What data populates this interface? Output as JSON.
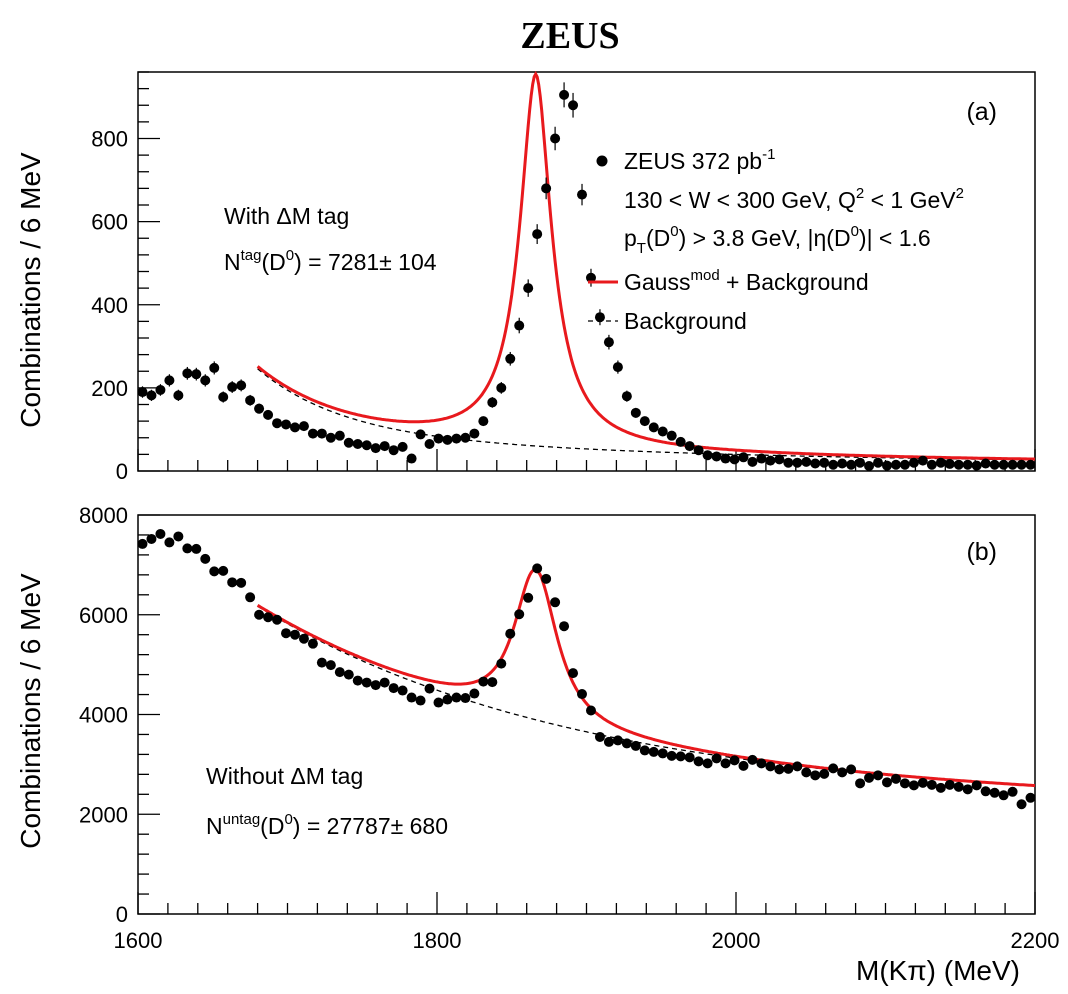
{
  "figure_title": "ZEUS",
  "x_axis_label": "M(Kπ)  (MeV)",
  "y_axis_label": "Combinations  /  6 MeV",
  "colors": {
    "data": "#000000",
    "fit": "#e8191d",
    "background": "#000000"
  },
  "chart_data": [
    {
      "type": "scatter",
      "panel_label": "(a)",
      "xlim": [
        1600,
        2200
      ],
      "ylim": [
        0,
        960
      ],
      "yticks": [
        0,
        200,
        400,
        600,
        800
      ],
      "xticks": [
        1600,
        1800,
        2000,
        2200
      ],
      "grid": false,
      "legend_position": "top-right",
      "legend": {
        "data": {
          "main": "ZEUS  372 pb",
          "sup": "-1"
        },
        "line1": "130 < W < 300 GeV, Q",
        "line1_sup": "2",
        "line1_mid": " < 1 GeV",
        "line1_sup2": "2",
        "line2": "p",
        "line2_sub": "T",
        "line2_a": "(D",
        "line2_sup": "0",
        "line2_b": ") > 3.8 GeV, |η(D",
        "line2_sup2": "0",
        "line2_c": ")| < 1.6",
        "fit": {
          "main": "Gauss",
          "sup": "mod",
          "rest": " + Background"
        },
        "bkg": "Background"
      },
      "annotations": {
        "tag_line": "With ΔM tag",
        "count_main": "N",
        "count_sup": "tag",
        "count_a": "(D",
        "count_sup2": "0",
        "count_b": ") = 7281± 104"
      },
      "data_points": {
        "x": [
          1603,
          1609,
          1615,
          1621,
          1627,
          1633,
          1639,
          1645,
          1651,
          1657,
          1663,
          1669,
          1675,
          1681,
          1687,
          1693,
          1699,
          1705,
          1711,
          1717,
          1723,
          1729,
          1735,
          1741,
          1747,
          1753,
          1759,
          1765,
          1771,
          1777,
          1783,
          1789,
          1795,
          1801,
          1807,
          1813,
          1819,
          1825,
          1831,
          1837,
          1843,
          1849,
          1855,
          1861,
          1867,
          1873,
          1879,
          1885,
          1891,
          1897,
          1903,
          1909,
          1915,
          1921,
          1927,
          1933,
          1939,
          1945,
          1951,
          1957,
          1963,
          1969,
          1975,
          1981,
          1987,
          1993,
          1999,
          2005,
          2011,
          2017,
          2023,
          2029,
          2035,
          2041,
          2047,
          2053,
          2059,
          2065,
          2071,
          2077,
          2083,
          2089,
          2095,
          2101,
          2107,
          2113,
          2119,
          2125,
          2131,
          2137,
          2143,
          2149,
          2155,
          2161,
          2167,
          2173,
          2179,
          2185,
          2191,
          2197
        ],
        "y": [
          190,
          182,
          195,
          218,
          182,
          235,
          233,
          218,
          248,
          178,
          202,
          206,
          170,
          150,
          135,
          115,
          112,
          105,
          108,
          90,
          90,
          80,
          85,
          68,
          65,
          62,
          55,
          60,
          50,
          58,
          30,
          88,
          65,
          78,
          75,
          78,
          80,
          90,
          120,
          165,
          200,
          270,
          350,
          440,
          570,
          680,
          800,
          905,
          880,
          665,
          465,
          370,
          310,
          250,
          180,
          140,
          120,
          105,
          95,
          85,
          70,
          60,
          50,
          38,
          35,
          30,
          28,
          33,
          22,
          30,
          25,
          28,
          20,
          20,
          22,
          18,
          20,
          15,
          18,
          15,
          20,
          12,
          20,
          13,
          15,
          15,
          20,
          25,
          15,
          20,
          17,
          15,
          15,
          13,
          18,
          15,
          15,
          15,
          15,
          15
        ]
      },
      "fit_curve": {
        "type": "gauss_mod_plus_background",
        "peak_mass": 1866,
        "peak_value": 955,
        "x_start": 1680,
        "x_end": 2200
      },
      "background_curve": {
        "x_start": 1680,
        "x_end": 2200
      }
    },
    {
      "type": "scatter",
      "panel_label": "(b)",
      "xlim": [
        1600,
        2200
      ],
      "ylim": [
        0,
        8000
      ],
      "yticks": [
        0,
        2000,
        4000,
        6000,
        8000
      ],
      "xticks": [
        1600,
        1800,
        2000,
        2200
      ],
      "xtick_labels": [
        "1600",
        "1800",
        "2000",
        "2200"
      ],
      "grid": false,
      "annotations": {
        "tag_line": "Without ΔM tag",
        "count_main": "N",
        "count_sup": "untag",
        "count_a": "(D",
        "count_sup2": "0",
        "count_b": ") = 27787± 680"
      },
      "data_points": {
        "x": [
          1603,
          1609,
          1615,
          1621,
          1627,
          1633,
          1639,
          1645,
          1651,
          1657,
          1663,
          1669,
          1675,
          1681,
          1687,
          1693,
          1699,
          1705,
          1711,
          1717,
          1723,
          1729,
          1735,
          1741,
          1747,
          1753,
          1759,
          1765,
          1771,
          1777,
          1783,
          1789,
          1795,
          1801,
          1807,
          1813,
          1819,
          1825,
          1831,
          1837,
          1843,
          1849,
          1855,
          1861,
          1867,
          1873,
          1879,
          1885,
          1891,
          1897,
          1903,
          1909,
          1915,
          1921,
          1927,
          1933,
          1939,
          1945,
          1951,
          1957,
          1963,
          1969,
          1975,
          1981,
          1987,
          1993,
          1999,
          2005,
          2011,
          2017,
          2023,
          2029,
          2035,
          2041,
          2047,
          2053,
          2059,
          2065,
          2071,
          2077,
          2083,
          2089,
          2095,
          2101,
          2107,
          2113,
          2119,
          2125,
          2131,
          2137,
          2143,
          2149,
          2155,
          2161,
          2167,
          2173,
          2179,
          2185,
          2191,
          2197
        ],
        "y": [
          7420,
          7520,
          7620,
          7450,
          7570,
          7330,
          7320,
          7120,
          6870,
          6880,
          6650,
          6640,
          6350,
          6000,
          5950,
          5900,
          5630,
          5600,
          5520,
          5420,
          5040,
          4990,
          4850,
          4800,
          4680,
          4640,
          4590,
          4640,
          4530,
          4480,
          4340,
          4280,
          4520,
          4240,
          4300,
          4340,
          4330,
          4420,
          4660,
          4650,
          5020,
          5620,
          6010,
          6340,
          6930,
          6720,
          6250,
          5770,
          4830,
          4410,
          4080,
          3550,
          3450,
          3480,
          3420,
          3370,
          3280,
          3250,
          3220,
          3170,
          3160,
          3140,
          3060,
          3020,
          3120,
          3020,
          3080,
          2970,
          3090,
          3020,
          2960,
          2900,
          2910,
          2960,
          2840,
          2780,
          2810,
          2920,
          2840,
          2900,
          2620,
          2730,
          2780,
          2640,
          2710,
          2620,
          2580,
          2630,
          2590,
          2530,
          2590,
          2550,
          2500,
          2580,
          2460,
          2430,
          2380,
          2450,
          2200,
          2330
        ]
      },
      "fit_curve": {
        "type": "gauss_mod_plus_background",
        "peak_mass": 1866,
        "peak_value": 6900,
        "x_start": 1680,
        "x_end": 2200
      },
      "background_curve": {
        "x_start": 1680,
        "x_end": 2200
      }
    }
  ]
}
